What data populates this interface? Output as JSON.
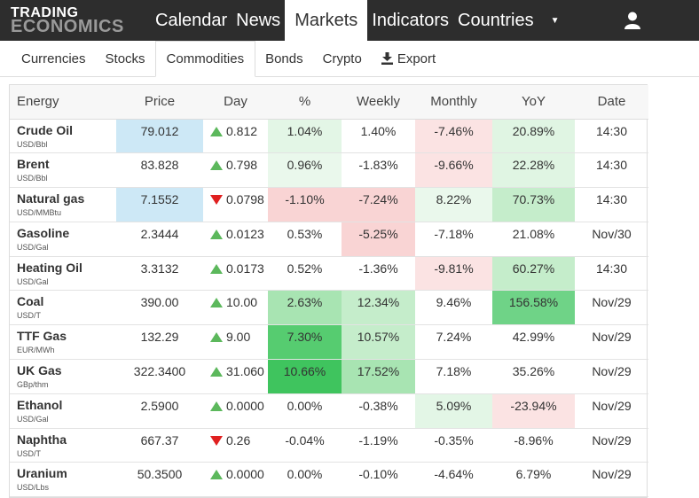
{
  "logo": {
    "line1": "TRADING",
    "line2": "ECONOMICS"
  },
  "nav": [
    "Calendar",
    "News",
    "Markets",
    "Indicators",
    "Countries"
  ],
  "subnav": [
    "Currencies",
    "Stocks",
    "Commodities",
    "Bonds",
    "Crypto"
  ],
  "export_label": "Export",
  "table": {
    "headers": [
      "Energy",
      "Price",
      "Day",
      "%",
      "Weekly",
      "Monthly",
      "YoY",
      "Date"
    ],
    "rows": [
      {
        "name": "Crude Oil",
        "unit": "USD/Bbl",
        "price": "79.012",
        "dir": "up",
        "day": "0.812",
        "pct": "1.04%",
        "weekly": "1.40%",
        "monthly": "-7.46%",
        "yoy": "20.89%",
        "date": "14:30",
        "bg": {
          "price": "#cde8f6",
          "pct": "#e3f6e6",
          "weekly": "#ffffff",
          "monthly": "#fbe3e3",
          "yoy": "#e0f5e3"
        }
      },
      {
        "name": "Brent",
        "unit": "USD/Bbl",
        "price": "83.828",
        "dir": "up",
        "day": "0.798",
        "pct": "0.96%",
        "weekly": "-1.83%",
        "monthly": "-9.66%",
        "yoy": "22.28%",
        "date": "14:30",
        "bg": {
          "price": "#ffffff",
          "pct": "#eaf8ec",
          "weekly": "#ffffff",
          "monthly": "#fbe3e3",
          "yoy": "#e0f5e3"
        }
      },
      {
        "name": "Natural gas",
        "unit": "USD/MMBtu",
        "price": "7.1552",
        "dir": "down",
        "day": "0.0798",
        "pct": "-1.10%",
        "weekly": "-7.24%",
        "monthly": "8.22%",
        "yoy": "70.73%",
        "date": "14:30",
        "bg": {
          "price": "#cde8f6",
          "pct": "#f9d4d4",
          "weekly": "#f9d4d4",
          "monthly": "#eaf8ec",
          "yoy": "#c5edcb"
        }
      },
      {
        "name": "Gasoline",
        "unit": "USD/Gal",
        "price": "2.3444",
        "dir": "up",
        "day": "0.0123",
        "pct": "0.53%",
        "weekly": "-5.25%",
        "monthly": "-7.18%",
        "yoy": "21.08%",
        "date": "Nov/30",
        "bg": {
          "price": "#ffffff",
          "pct": "#ffffff",
          "weekly": "#f9d4d4",
          "monthly": "#ffffff",
          "yoy": "#ffffff"
        }
      },
      {
        "name": "Heating Oil",
        "unit": "USD/Gal",
        "price": "3.3132",
        "dir": "up",
        "day": "0.0173",
        "pct": "0.52%",
        "weekly": "-1.36%",
        "monthly": "-9.81%",
        "yoy": "60.27%",
        "date": "14:30",
        "bg": {
          "price": "#ffffff",
          "pct": "#ffffff",
          "weekly": "#ffffff",
          "monthly": "#fbe3e3",
          "yoy": "#c5edcb"
        }
      },
      {
        "name": "Coal",
        "unit": "USD/T",
        "price": "390.00",
        "dir": "up",
        "day": "10.00",
        "pct": "2.63%",
        "weekly": "12.34%",
        "monthly": "9.46%",
        "yoy": "156.58%",
        "date": "Nov/29",
        "bg": {
          "price": "#ffffff",
          "pct": "#a8e4b2",
          "weekly": "#c5edcb",
          "monthly": "#ffffff",
          "yoy": "#6fd387"
        }
      },
      {
        "name": "TTF Gas",
        "unit": "EUR/MWh",
        "price": "132.29",
        "dir": "up",
        "day": "9.00",
        "pct": "7.30%",
        "weekly": "10.57%",
        "monthly": "7.24%",
        "yoy": "42.99%",
        "date": "Nov/29",
        "bg": {
          "price": "#ffffff",
          "pct": "#56cc70",
          "weekly": "#c5edcb",
          "monthly": "#ffffff",
          "yoy": "#ffffff"
        }
      },
      {
        "name": "UK Gas",
        "unit": "GBp/thm",
        "price": "322.3400",
        "dir": "up",
        "day": "31.060",
        "pct": "10.66%",
        "weekly": "17.52%",
        "monthly": "7.18%",
        "yoy": "35.26%",
        "date": "Nov/29",
        "bg": {
          "price": "#ffffff",
          "pct": "#3fc45e",
          "weekly": "#a8e4b2",
          "monthly": "#ffffff",
          "yoy": "#ffffff"
        }
      },
      {
        "name": "Ethanol",
        "unit": "USD/Gal",
        "price": "2.5900",
        "dir": "up",
        "day": "0.0000",
        "pct": "0.00%",
        "weekly": "-0.38%",
        "monthly": "5.09%",
        "yoy": "-23.94%",
        "date": "Nov/29",
        "bg": {
          "price": "#ffffff",
          "pct": "#ffffff",
          "weekly": "#ffffff",
          "monthly": "#e3f6e6",
          "yoy": "#fbe3e3"
        }
      },
      {
        "name": "Naphtha",
        "unit": "USD/T",
        "price": "667.37",
        "dir": "down",
        "day": "0.26",
        "pct": "-0.04%",
        "weekly": "-1.19%",
        "monthly": "-0.35%",
        "yoy": "-8.96%",
        "date": "Nov/29",
        "bg": {
          "price": "#ffffff",
          "pct": "#ffffff",
          "weekly": "#ffffff",
          "monthly": "#ffffff",
          "yoy": "#ffffff"
        }
      },
      {
        "name": "Uranium",
        "unit": "USD/Lbs",
        "price": "50.3500",
        "dir": "up",
        "day": "0.0000",
        "pct": "0.00%",
        "weekly": "-0.10%",
        "monthly": "-4.64%",
        "yoy": "6.79%",
        "date": "Nov/29",
        "bg": {
          "price": "#ffffff",
          "pct": "#ffffff",
          "weekly": "#ffffff",
          "monthly": "#ffffff",
          "yoy": "#ffffff"
        }
      }
    ]
  }
}
